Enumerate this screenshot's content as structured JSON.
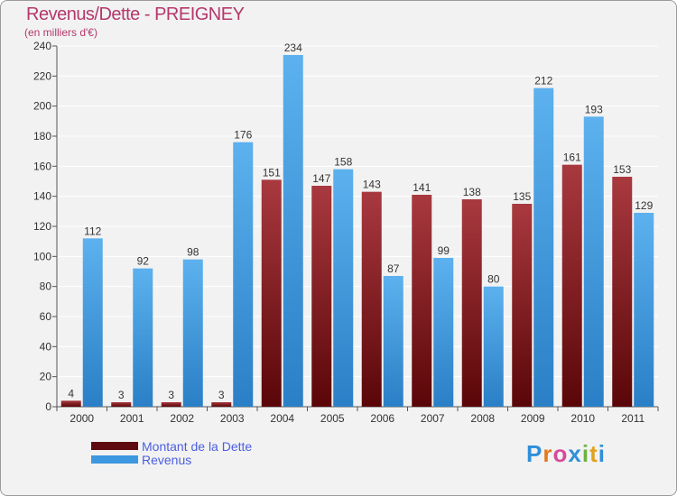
{
  "title": "Revenus/Dette - PREIGNEY",
  "subtitle": "(en milliers d'€)",
  "colors": {
    "dette": "#8b2a2f",
    "revenus": "#4da3e4",
    "title": "#b4386b",
    "legend_text": "#4a5fe0"
  },
  "legend": [
    {
      "label": "Montant de la Dette",
      "color": "#5e0a10"
    },
    {
      "label": "Revenus",
      "color": "#3d98e0"
    }
  ],
  "logo": {
    "letters": [
      "P",
      "r",
      "o",
      "x",
      "i",
      "t",
      "i"
    ],
    "colors": [
      "#2f8fd8",
      "#e07b1f",
      "#d64a9a",
      "#2f8fd8",
      "#6cb33f",
      "#e0a21f",
      "#2f8fd8"
    ]
  },
  "chart_data": {
    "type": "bar",
    "categories": [
      "2000",
      "2001",
      "2002",
      "2003",
      "2004",
      "2005",
      "2006",
      "2007",
      "2008",
      "2009",
      "2010",
      "2011"
    ],
    "series": [
      {
        "name": "Montant de la Dette",
        "values": [
          4,
          3,
          3,
          3,
          151,
          147,
          143,
          141,
          138,
          135,
          161,
          153
        ]
      },
      {
        "name": "Revenus",
        "values": [
          112,
          92,
          98,
          176,
          234,
          158,
          87,
          99,
          80,
          212,
          193,
          129
        ]
      }
    ],
    "yticks": [
      0,
      20,
      40,
      60,
      80,
      100,
      120,
      140,
      160,
      180,
      200,
      220,
      240
    ],
    "ylim": [
      0,
      240
    ],
    "grid": true,
    "legend_position": "bottom-left"
  }
}
